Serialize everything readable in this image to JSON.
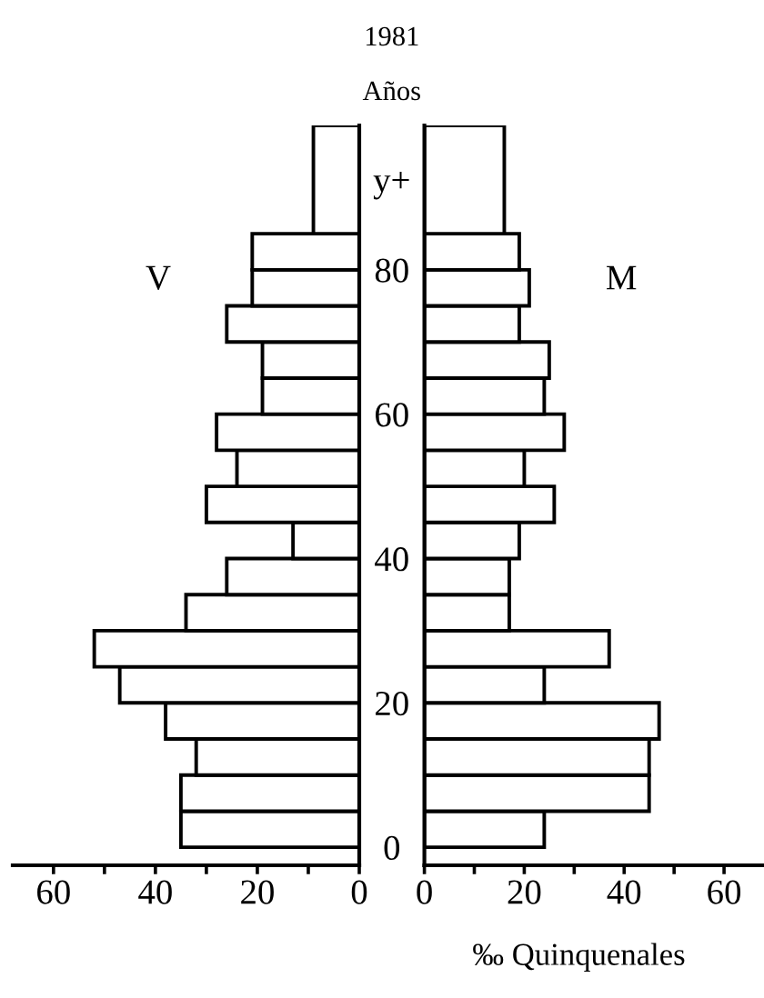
{
  "chart_data": [
    {
      "type": "histogram",
      "orientation": "horizontal",
      "title": "1981",
      "ylabel": "Años",
      "bins": [
        0,
        5,
        10,
        15,
        20,
        25,
        30,
        35,
        40,
        45,
        50,
        55,
        60,
        65,
        70,
        75,
        80,
        85,
        100
      ],
      "series": [
        {
          "name": "V",
          "color": "#ffffff",
          "values": [
            35,
            35,
            32,
            38,
            47,
            52,
            34,
            26,
            13,
            30,
            24,
            28,
            19,
            19,
            26,
            21,
            21,
            9
          ]
        }
      ],
      "xlim": [
        68,
        0
      ],
      "xticks": [
        0,
        {
          "value": 10,
          "label": null
        },
        20,
        {
          "value": 30,
          "label": null
        },
        40,
        {
          "value": 50,
          "label": null
        },
        60
      ],
      "ylim": [
        -2.5,
        100
      ],
      "yticks": [
        0,
        20,
        40,
        60,
        80,
        {
          "value": 92.5,
          "label": "y+"
        }
      ]
    },
    {
      "type": "histogram",
      "orientation": "horizontal",
      "xlabel": "‰ Quinquenales",
      "bins": [
        0,
        5,
        10,
        15,
        20,
        25,
        30,
        35,
        40,
        45,
        50,
        55,
        60,
        65,
        70,
        75,
        80,
        85,
        100
      ],
      "series": [
        {
          "name": "M",
          "color": "#ffffff",
          "values": [
            24,
            45,
            45,
            47,
            24,
            37,
            17,
            17,
            19,
            26,
            20,
            28,
            24,
            25,
            19,
            21,
            19,
            16
          ]
        }
      ],
      "xlim": [
        0,
        68
      ],
      "xticks": [
        0,
        {
          "value": 10,
          "label": null
        },
        20,
        {
          "value": 30,
          "label": null
        },
        40,
        {
          "value": 50,
          "label": null
        },
        60
      ],
      "ylim": [
        -2.5,
        100
      ],
      "tick_labels": "x"
    }
  ]
}
